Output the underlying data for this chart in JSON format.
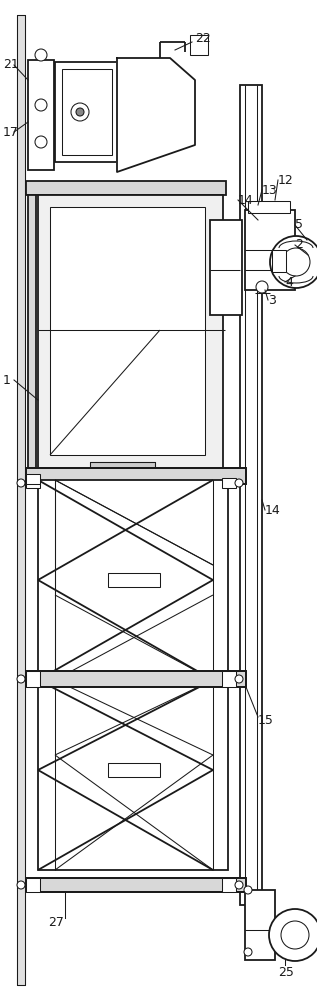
{
  "bg_color": "#ffffff",
  "line_color": "#1a1a1a",
  "lw": 1.3,
  "tlw": 0.75
}
